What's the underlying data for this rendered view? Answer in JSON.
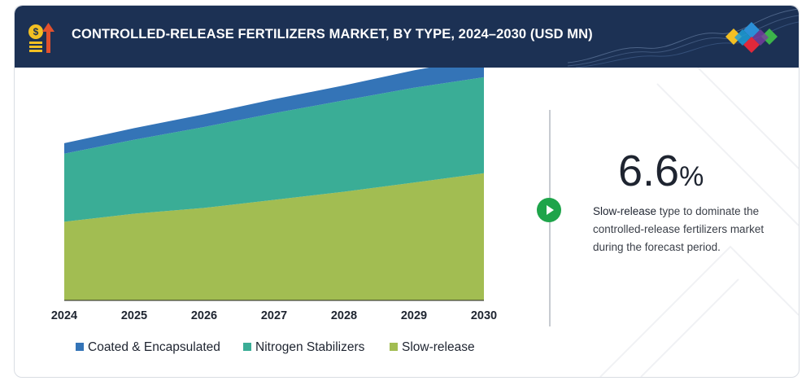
{
  "header": {
    "title": "CONTROLLED-RELEASE FERTILIZERS MARKET, BY TYPE, 2024–2030 (USD MN)",
    "background_color": "#1c3154",
    "icon": "money-growth-icon",
    "brand_icon": "diamond-cluster-logo-icon"
  },
  "chart_data": {
    "type": "area",
    "stacked": true,
    "x": [
      "2024",
      "2025",
      "2026",
      "2027",
      "2028",
      "2029",
      "2030"
    ],
    "ylim": [
      0,
      100
    ],
    "grid": false,
    "legend_placement": "bottom",
    "series": [
      {
        "name": "Slow-release",
        "color": "#a2bd52",
        "values": [
          34,
          37.5,
          40,
          43.5,
          47,
          51,
          55
        ]
      },
      {
        "name": "Nitrogen Stabilizers",
        "color": "#3aad96",
        "values": [
          29.5,
          32,
          35,
          37.5,
          39.5,
          41,
          41.5
        ]
      },
      {
        "name": "Coated & Encapsulated",
        "color": "#3474b7",
        "values": [
          4.5,
          5,
          5.5,
          6,
          6.5,
          7.5,
          8.5
        ]
      }
    ],
    "legend_order": [
      "Coated & Encapsulated",
      "Nitrogen Stabilizers",
      "Slow-release"
    ]
  },
  "highlight": {
    "value": "6.6",
    "unit": "%",
    "emphasis": "Slow-release",
    "text": " type to dominate the controlled-release fertilizers market during the forecast period.",
    "play_color": "#1ea44a"
  }
}
